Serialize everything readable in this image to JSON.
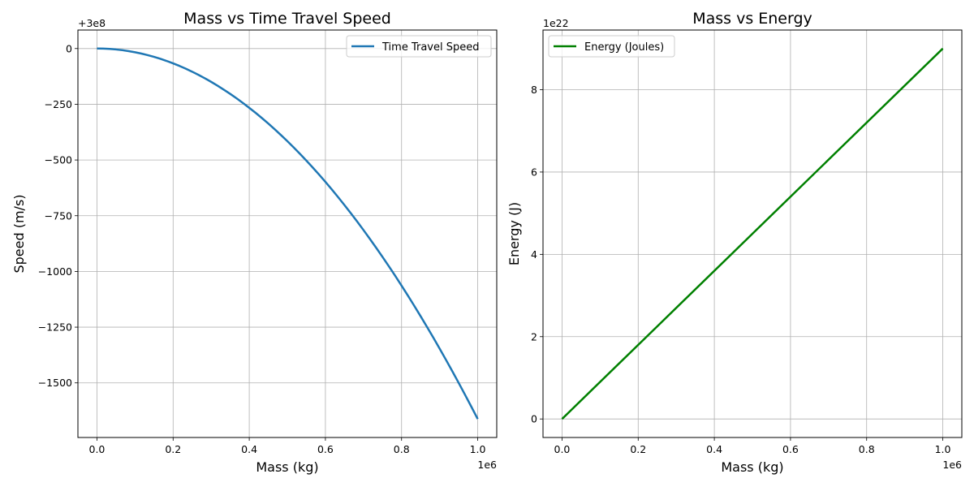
{
  "chart_data": [
    {
      "type": "line",
      "title": "Mass vs Time Travel Speed",
      "xlabel": "Mass (kg)",
      "ylabel": "Speed (m/s)",
      "x_multiplier": "1e6",
      "y_offset_label": "+3e8",
      "xlim": [
        -0.05,
        1.05
      ],
      "ylim": [
        -1745,
        83
      ],
      "xticks": [
        "0.0",
        "0.2",
        "0.4",
        "0.6",
        "0.8",
        "1.0"
      ],
      "xtick_values": [
        0.0,
        0.2,
        0.4,
        0.6,
        0.8,
        1.0
      ],
      "yticks": [
        "0",
        "−250",
        "−500",
        "−750",
        "−1000",
        "−1250",
        "−1500"
      ],
      "ytick_values": [
        0,
        -250,
        -500,
        -750,
        -1000,
        -1250,
        -1500
      ],
      "grid": true,
      "legend_position": "upper right",
      "series": [
        {
          "name": "Time Travel Speed",
          "color": "#1f77b4",
          "x": [
            0.0,
            0.1,
            0.2,
            0.3,
            0.4,
            0.5,
            0.6,
            0.7,
            0.8,
            0.9,
            1.0
          ],
          "y": [
            0,
            -17,
            -67,
            -150,
            -266,
            -415,
            -598,
            -814,
            -1063,
            -1346,
            -1662
          ]
        }
      ]
    },
    {
      "type": "line",
      "title": "Mass vs Energy",
      "xlabel": "Mass (kg)",
      "ylabel": "Energy (J)",
      "x_multiplier": "1e6",
      "y_multiplier": "1e22",
      "xlim": [
        -0.05,
        1.05
      ],
      "ylim": [
        -0.45,
        9.45
      ],
      "xticks": [
        "0.0",
        "0.2",
        "0.4",
        "0.6",
        "0.8",
        "1.0"
      ],
      "xtick_values": [
        0.0,
        0.2,
        0.4,
        0.6,
        0.8,
        1.0
      ],
      "yticks": [
        "0",
        "2",
        "4",
        "6",
        "8"
      ],
      "ytick_values": [
        0,
        2,
        4,
        6,
        8
      ],
      "grid": true,
      "legend_position": "upper left",
      "series": [
        {
          "name": "Energy (Joules)",
          "color": "#008000",
          "x": [
            0.0,
            0.25,
            0.5,
            0.75,
            1.0
          ],
          "y": [
            0.0,
            2.25,
            4.5,
            6.75,
            9.0
          ]
        }
      ]
    }
  ]
}
